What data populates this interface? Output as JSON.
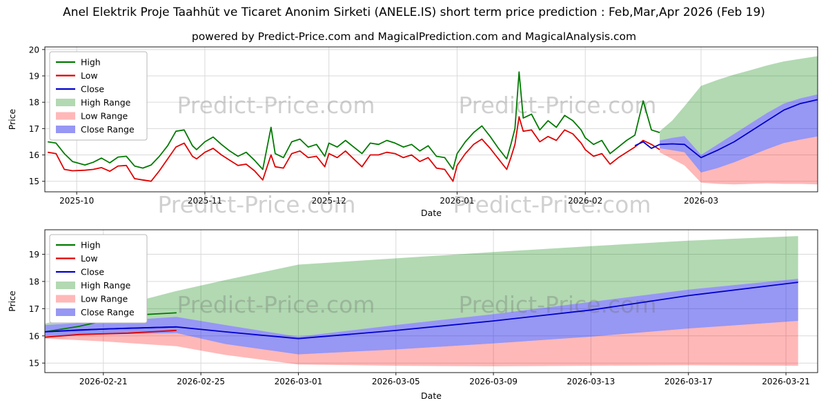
{
  "figure": {
    "title": "Anel Elektrik Proje Taahhüt ve Ticaret Anonim Sirketi (ANELE.IS) short term price prediction : Feb,Mar,Apr 2026 (Feb 19)",
    "subtitle": "powered by Predict-Price.com and MagicalPrediction.com and MagicalAnalysis.com",
    "watermark": "Predict-Price.com",
    "background": "#ffffff"
  },
  "colors": {
    "high_line": "#007a00",
    "low_line": "#e00000",
    "close_line": "#0000cd",
    "high_range_fill": "rgba(0,128,0,0.30)",
    "low_range_fill": "rgba(255,0,0,0.28)",
    "close_range_fill": "rgba(25,25,230,0.45)",
    "grid": "#d9d9d9",
    "spine": "#1a1a1a",
    "tick_text": "#000000",
    "watermark_text": "rgba(110,110,110,0.32)"
  },
  "legend": {
    "items": [
      {
        "label": "High",
        "swatch": "line",
        "color": "high_line"
      },
      {
        "label": "Low",
        "swatch": "line",
        "color": "low_line"
      },
      {
        "label": "Close",
        "swatch": "line",
        "color": "close_line"
      },
      {
        "label": "High Range",
        "swatch": "patch",
        "color": "high_range_fill"
      },
      {
        "label": "Low Range",
        "swatch": "patch",
        "color": "low_range_fill"
      },
      {
        "label": "Close Range",
        "swatch": "patch",
        "color": "close_range_fill"
      }
    ]
  },
  "chart_data": [
    {
      "name": "price-history-chart",
      "type": "line",
      "ylabel": "Price",
      "xlabel": "Date",
      "xlim": [
        -2.7,
        184.2
      ],
      "ylim": [
        14.6,
        20.1
      ],
      "yticks": [
        15,
        16,
        17,
        18,
        19,
        20
      ],
      "xticks": [
        {
          "pos": 5,
          "label": "2025-10"
        },
        {
          "pos": 36,
          "label": "2025-11"
        },
        {
          "pos": 66,
          "label": "2025-12"
        },
        {
          "pos": 97,
          "label": "2026-01"
        },
        {
          "pos": 128,
          "label": "2026-02"
        },
        {
          "pos": 156,
          "label": "2026-03"
        }
      ],
      "series": {
        "high": {
          "x": [
            -2,
            0,
            2,
            4,
            7,
            9,
            11,
            13,
            15,
            17,
            19,
            21,
            23,
            25,
            27,
            29,
            31,
            33,
            34,
            36,
            38,
            40,
            42,
            44,
            46,
            48,
            50,
            52,
            53,
            55,
            57,
            59,
            61,
            63,
            65,
            66,
            68,
            70,
            72,
            74,
            76,
            78,
            80,
            82,
            84,
            86,
            88,
            90,
            92,
            94,
            96,
            97,
            99,
            101,
            103,
            105,
            107,
            109,
            110,
            111,
            112,
            113,
            115,
            117,
            119,
            121,
            123,
            125,
            127,
            128,
            130,
            132,
            134,
            136,
            138,
            140,
            142,
            144,
            146
          ],
          "y": [
            16.5,
            16.45,
            16.05,
            15.75,
            15.62,
            15.72,
            15.88,
            15.7,
            15.92,
            15.95,
            15.58,
            15.5,
            15.62,
            15.95,
            16.35,
            16.9,
            16.95,
            16.35,
            16.2,
            16.5,
            16.68,
            16.4,
            16.15,
            15.95,
            16.1,
            15.8,
            15.45,
            17.05,
            16.05,
            15.9,
            16.5,
            16.6,
            16.3,
            16.4,
            15.95,
            16.45,
            16.3,
            16.55,
            16.3,
            16.05,
            16.45,
            16.4,
            16.55,
            16.45,
            16.3,
            16.4,
            16.15,
            16.35,
            15.95,
            15.9,
            15.45,
            16.05,
            16.5,
            16.85,
            17.1,
            16.7,
            16.25,
            15.85,
            16.4,
            17.0,
            19.15,
            17.4,
            17.55,
            16.95,
            17.3,
            17.05,
            17.5,
            17.3,
            16.95,
            16.65,
            16.4,
            16.55,
            16.05,
            16.3,
            16.55,
            16.75,
            18.05,
            16.95,
            16.85
          ]
        },
        "low": {
          "x": [
            -2,
            0,
            2,
            4,
            7,
            9,
            11,
            13,
            15,
            17,
            19,
            21,
            23,
            25,
            27,
            29,
            31,
            33,
            34,
            36,
            38,
            40,
            42,
            44,
            46,
            48,
            50,
            52,
            53,
            55,
            57,
            59,
            61,
            63,
            65,
            66,
            68,
            70,
            72,
            74,
            76,
            78,
            80,
            82,
            84,
            86,
            88,
            90,
            92,
            94,
            96,
            97,
            99,
            101,
            103,
            105,
            107,
            109,
            110,
            111,
            112,
            113,
            115,
            117,
            119,
            121,
            123,
            125,
            127,
            128,
            130,
            132,
            134,
            136,
            138,
            140,
            142,
            144,
            146
          ],
          "y": [
            16.1,
            16.05,
            15.45,
            15.4,
            15.42,
            15.45,
            15.52,
            15.38,
            15.58,
            15.6,
            15.1,
            15.05,
            15.0,
            15.4,
            15.85,
            16.3,
            16.45,
            15.95,
            15.85,
            16.1,
            16.25,
            16.0,
            15.8,
            15.6,
            15.65,
            15.4,
            15.05,
            16.0,
            15.55,
            15.5,
            16.05,
            16.15,
            15.9,
            15.95,
            15.55,
            16.05,
            15.9,
            16.15,
            15.85,
            15.55,
            16.0,
            16.0,
            16.1,
            16.05,
            15.9,
            16.0,
            15.75,
            15.9,
            15.5,
            15.45,
            15.0,
            15.6,
            16.05,
            16.4,
            16.6,
            16.25,
            15.85,
            15.45,
            15.9,
            16.4,
            17.45,
            16.9,
            16.95,
            16.5,
            16.7,
            16.55,
            16.95,
            16.8,
            16.45,
            16.2,
            15.95,
            16.05,
            15.65,
            15.9,
            16.1,
            16.3,
            16.55,
            16.4,
            16.2
          ]
        },
        "close": {
          "x": [
            140,
            142,
            144,
            146
          ],
          "y": [
            16.35,
            16.5,
            16.25,
            16.4
          ]
        }
      },
      "forecast": {
        "days": [
          146,
          149,
          152,
          156,
          160,
          164,
          168,
          172,
          176,
          180,
          184.2
        ],
        "high_upper": [
          16.9,
          17.3,
          17.85,
          18.62,
          18.85,
          19.05,
          19.22,
          19.4,
          19.55,
          19.65,
          19.75
        ],
        "close_upper": [
          16.55,
          16.65,
          16.72,
          16.0,
          16.4,
          16.8,
          17.2,
          17.6,
          17.95,
          18.15,
          18.3
        ],
        "close": [
          16.4,
          16.42,
          16.4,
          15.9,
          16.18,
          16.5,
          16.9,
          17.3,
          17.7,
          17.95,
          18.1
        ],
        "close_lower": [
          16.25,
          16.18,
          16.1,
          15.33,
          15.5,
          15.72,
          15.97,
          16.22,
          16.45,
          16.58,
          16.7
        ],
        "low_lower": [
          16.1,
          15.85,
          15.6,
          14.95,
          14.9,
          14.88,
          14.9,
          14.92,
          14.9,
          14.9,
          14.88
        ]
      }
    },
    {
      "name": "forecast-detail-chart",
      "type": "line",
      "ylabel": "Price",
      "xlabel": "Date",
      "xlim": [
        145.6,
        177.3
      ],
      "ylim": [
        14.65,
        19.9
      ],
      "yticks": [
        15,
        16,
        17,
        18,
        19
      ],
      "xticks": [
        {
          "pos": 148,
          "label": "2026-02-21"
        },
        {
          "pos": 152,
          "label": "2026-02-25"
        },
        {
          "pos": 156,
          "label": "2026-03-01"
        },
        {
          "pos": 160,
          "label": "2026-03-05"
        },
        {
          "pos": 164,
          "label": "2026-03-09"
        },
        {
          "pos": 168,
          "label": "2026-03-13"
        },
        {
          "pos": 172,
          "label": "2026-03-17"
        },
        {
          "pos": 176,
          "label": "2026-03-21"
        }
      ],
      "series": {
        "high": {
          "x": [
            145.6,
            147,
            149,
            151
          ],
          "y": [
            16.15,
            16.35,
            16.75,
            16.85
          ]
        },
        "low": {
          "x": [
            145.6,
            147,
            149,
            151
          ],
          "y": [
            15.95,
            16.05,
            16.1,
            16.2
          ]
        },
        "close": {
          "x": [
            145.6,
            147,
            149,
            151
          ],
          "y": [
            16.15,
            16.22,
            16.28,
            16.33
          ]
        }
      },
      "forecast": {
        "days": [
          145.6,
          148,
          151,
          153,
          156,
          160,
          164,
          168,
          172,
          176.5
        ],
        "high_upper": [
          16.45,
          16.95,
          17.65,
          18.05,
          18.62,
          18.85,
          19.08,
          19.3,
          19.5,
          19.67
        ],
        "close_upper": [
          16.4,
          16.52,
          16.7,
          16.4,
          15.97,
          16.4,
          16.8,
          17.25,
          17.7,
          18.1
        ],
        "close": [
          16.15,
          16.25,
          16.33,
          16.15,
          15.9,
          16.2,
          16.55,
          16.95,
          17.48,
          17.97
        ],
        "close_lower": [
          16.0,
          16.05,
          16.1,
          15.7,
          15.32,
          15.5,
          15.72,
          15.97,
          16.27,
          16.55
        ],
        "low_lower": [
          15.9,
          15.8,
          15.62,
          15.3,
          14.95,
          14.9,
          14.88,
          14.9,
          14.92,
          14.9
        ]
      }
    }
  ]
}
